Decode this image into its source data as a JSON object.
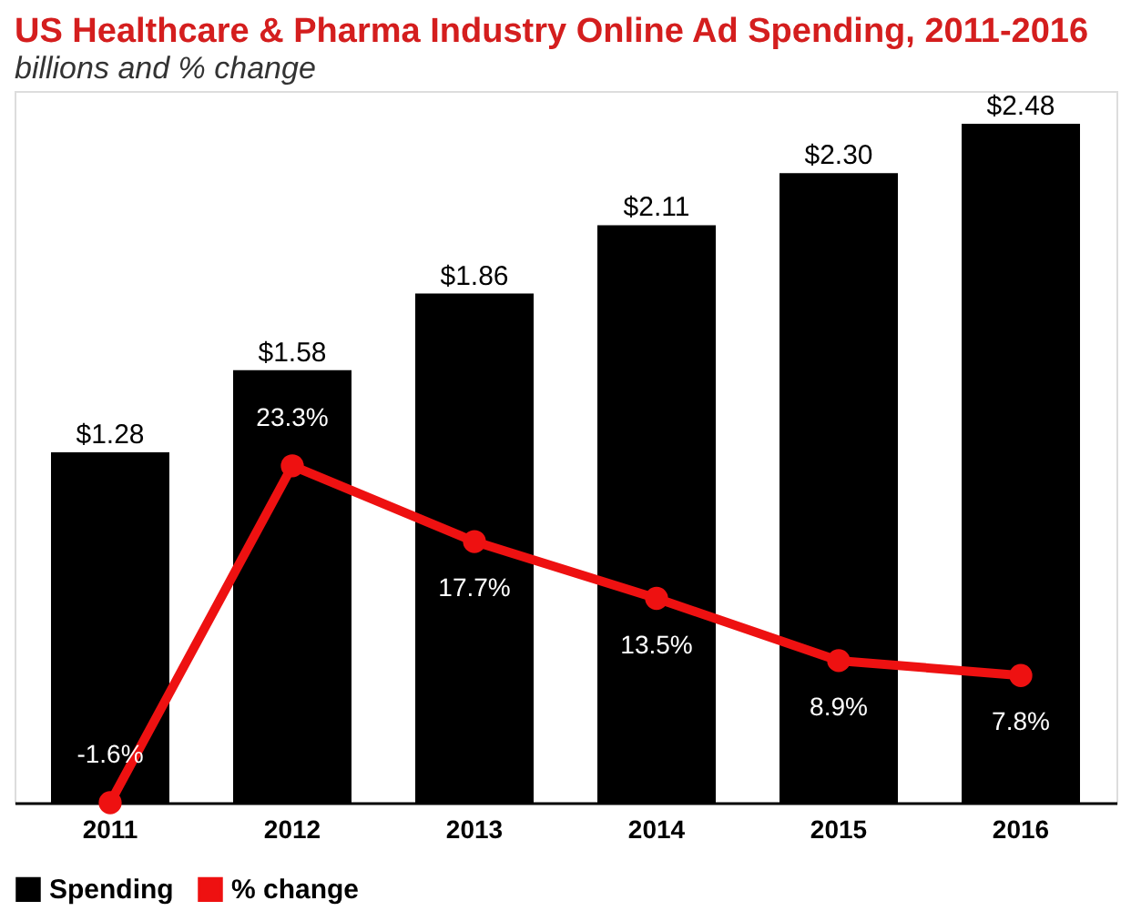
{
  "chart_data": {
    "type": "bar",
    "title": "US Healthcare & Pharma Industry Online Ad Spending, 2011-2016",
    "subtitle": "billions and % change",
    "categories": [
      "2011",
      "2012",
      "2013",
      "2014",
      "2015",
      "2016"
    ],
    "series": [
      {
        "name": "Spending",
        "color": "#000000",
        "values": [
          1.28,
          1.58,
          1.86,
          2.11,
          2.3,
          2.48
        ],
        "value_labels": [
          "$1.28",
          "$1.58",
          "$1.86",
          "$2.11",
          "$2.30",
          "$2.48"
        ]
      },
      {
        "name": "% change",
        "type": "line",
        "axis": "y2",
        "color": "#ee1111",
        "marker": "circle",
        "values": [
          -1.6,
          23.3,
          17.7,
          13.5,
          8.9,
          7.8
        ],
        "value_labels": [
          "-1.6%",
          "23.3%",
          "17.7%",
          "13.5%",
          "8.9%",
          "7.8%"
        ]
      }
    ],
    "ylim": [
      0,
      2.6
    ],
    "y2lim": [
      -1.6,
      51
    ],
    "tick_labels": "x",
    "grid": false,
    "legend": "bottom left"
  }
}
